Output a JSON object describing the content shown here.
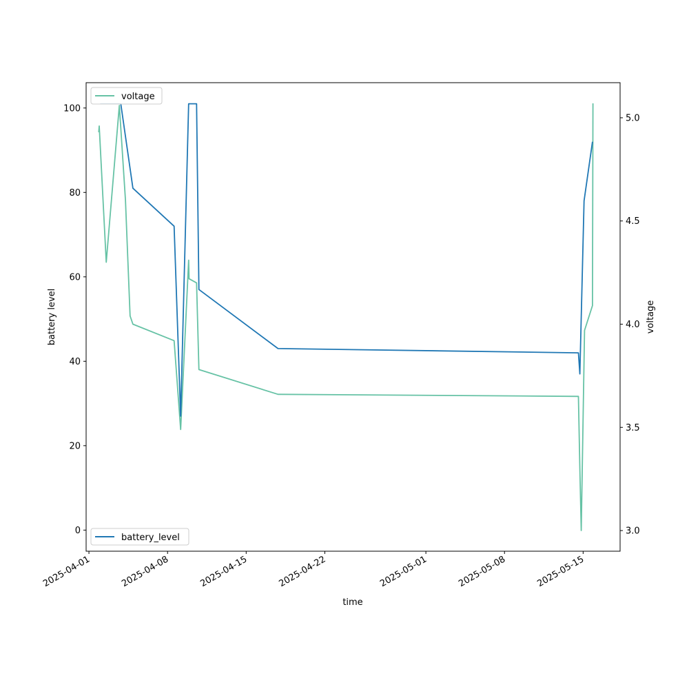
{
  "chart_data": {
    "type": "line",
    "title": "",
    "xlabel": "time",
    "ylabel_left": "battery level",
    "ylabel_right": "voltage",
    "x_ticks": [
      "2025-04-01",
      "2025-04-08",
      "2025-04-15",
      "2025-04-22",
      "2025-05-01",
      "2025-05-08",
      "2025-05-15"
    ],
    "xlim": [
      "2025-03-31T18:00",
      "2025-05-18T07:00"
    ],
    "ylim_left": [
      -5,
      106
    ],
    "ylim_right": [
      2.9,
      5.17
    ],
    "y_ticks_left": [
      0,
      20,
      40,
      60,
      80,
      100
    ],
    "y_ticks_right": [
      "3.0",
      "3.5",
      "4.0",
      "4.5",
      "5.0"
    ],
    "grid": false,
    "series": [
      {
        "name": "battery_level",
        "axis": "left",
        "color": "#1f77b4",
        "legend": "bottom-left",
        "points": [
          [
            "2025-04-02T00:00",
            101
          ],
          [
            "2025-04-03T20:00",
            101
          ],
          [
            "2025-04-04T22:00",
            81
          ],
          [
            "2025-04-08T14:00",
            72
          ],
          [
            "2025-04-09T04:00",
            27
          ],
          [
            "2025-04-09T21:00",
            101
          ],
          [
            "2025-04-10T14:00",
            101
          ],
          [
            "2025-04-10T19:00",
            57
          ],
          [
            "2025-04-17T20:00",
            43
          ],
          [
            "2025-05-14T14:00",
            42
          ],
          [
            "2025-05-14T17:00",
            37
          ],
          [
            "2025-05-15T02:00",
            78
          ],
          [
            "2025-05-15T20:00",
            92
          ]
        ]
      },
      {
        "name": "voltage",
        "axis": "right",
        "color": "#66c2a5",
        "legend": "top-left",
        "points": [
          [
            "2025-04-01T21:00",
            4.93
          ],
          [
            "2025-04-01T22:00",
            4.96
          ],
          [
            "2025-04-02T13:00",
            4.3
          ],
          [
            "2025-04-03T17:00",
            5.06
          ],
          [
            "2025-04-04T06:00",
            4.6
          ],
          [
            "2025-04-04T16:00",
            4.04
          ],
          [
            "2025-04-04T22:00",
            4.0
          ],
          [
            "2025-04-08T14:00",
            3.92
          ],
          [
            "2025-04-09T04:00",
            3.49
          ],
          [
            "2025-04-09T21:00",
            4.31
          ],
          [
            "2025-04-09T22:00",
            4.22
          ],
          [
            "2025-04-10T14:00",
            4.2
          ],
          [
            "2025-04-10T19:00",
            3.78
          ],
          [
            "2025-04-17T20:00",
            3.66
          ],
          [
            "2025-05-14T14:00",
            3.65
          ],
          [
            "2025-05-14T17:00",
            3.3
          ],
          [
            "2025-05-14T20:00",
            3.0
          ],
          [
            "2025-05-15T03:00",
            3.97
          ],
          [
            "2025-05-15T20:00",
            4.09
          ],
          [
            "2025-05-15T21:00",
            5.07
          ]
        ]
      }
    ]
  }
}
